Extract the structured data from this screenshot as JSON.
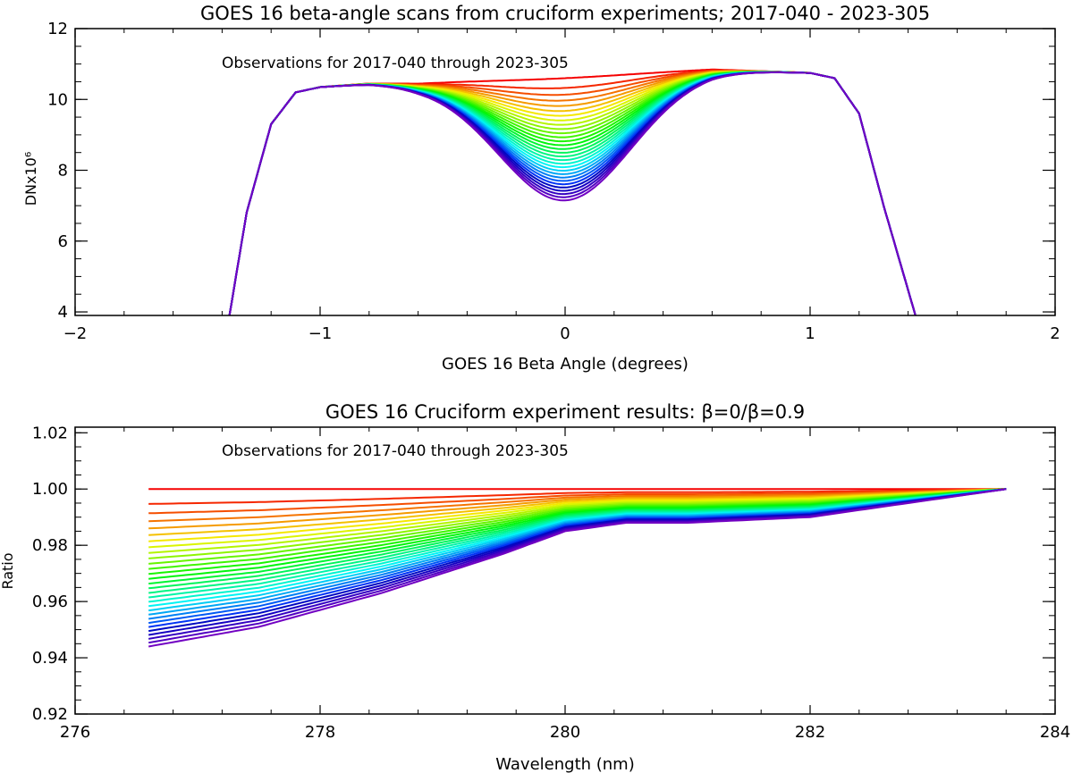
{
  "chart_data": [
    {
      "type": "line",
      "title": "GOES 16 beta-angle scans from cruciform experiments; 2017-040 - 2023-305",
      "annotation": "Observations for 2017-040 through 2023-305",
      "xlabel": "GOES 16 Beta Angle (degrees)",
      "ylabel": "DNx10⁶",
      "xlim": [
        -2,
        2
      ],
      "ylim": [
        3.9,
        12.0
      ],
      "x_ticks": [
        -2,
        -1,
        0,
        1,
        2
      ],
      "x_tick_labels": [
        "−2",
        "−1",
        "0",
        "1",
        "2"
      ],
      "y_ticks": [
        4,
        6,
        8,
        10,
        12
      ],
      "y_tick_labels": [
        "4",
        "6",
        "8",
        "10",
        "12"
      ],
      "curve_count": 30,
      "colormap": "rainbow (red = earliest observation, purple = latest)",
      "series_summary": {
        "shared_shape_x": [
          -1.37,
          -1.3,
          -1.2,
          -1.1,
          -1.0,
          -0.8,
          -0.6,
          0.6,
          0.8,
          1.0,
          1.1,
          1.2,
          1.3,
          1.43
        ],
        "shared_shape_y": [
          3.9,
          6.8,
          9.3,
          10.2,
          10.35,
          10.45,
          10.45,
          10.85,
          10.8,
          10.75,
          10.6,
          9.6,
          7.0,
          3.9
        ],
        "center_value_first": 10.6,
        "center_value_last": 7.15,
        "dip_half_width_deg": 0.45
      }
    },
    {
      "type": "line",
      "title": "GOES 16 Cruciform experiment results: β=0/β=0.9",
      "annotation": "Observations for 2017-040 through 2023-305",
      "xlabel": "Wavelength (nm)",
      "ylabel": "Ratio",
      "xlim": [
        276,
        284
      ],
      "ylim": [
        0.92,
        1.022
      ],
      "x_ticks": [
        276,
        278,
        280,
        282,
        284
      ],
      "x_tick_labels": [
        "276",
        "278",
        "280",
        "282",
        "284"
      ],
      "y_ticks": [
        0.92,
        0.94,
        0.96,
        0.98,
        1.0,
        1.02
      ],
      "y_tick_labels": [
        "0.92",
        "0.94",
        "0.96",
        "0.98",
        "1.00",
        "1.02"
      ],
      "curve_count": 30,
      "colormap": "rainbow (red = earliest observation, purple = latest)",
      "series_summary": {
        "wavelength": [
          276.6,
          277.5,
          278.5,
          279.5,
          280.0,
          280.5,
          281.0,
          282.0,
          283.6
        ],
        "ratio_first": [
          1.0,
          1.0,
          1.0,
          1.0,
          1.0,
          1.0,
          1.0,
          1.0,
          1.0
        ],
        "ratio_last": [
          0.944,
          0.951,
          0.963,
          0.977,
          0.985,
          0.988,
          0.988,
          0.99,
          1.0
        ]
      }
    }
  ]
}
